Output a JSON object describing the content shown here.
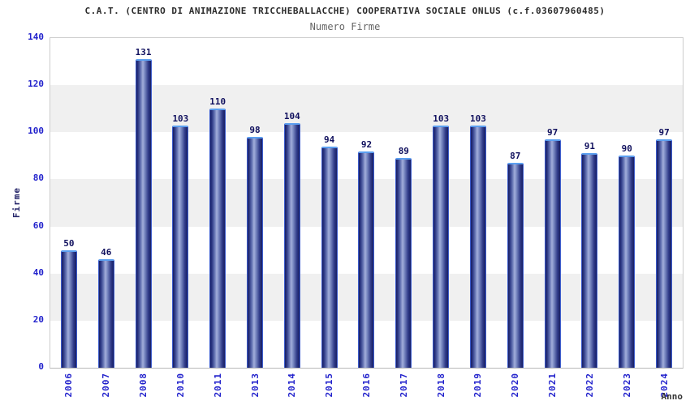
{
  "chart_data": {
    "type": "bar",
    "title": "C.A.T. (CENTRO DI ANIMAZIONE TRICCHEBALLACCHE) COOPERATIVA SOCIALE ONLUS (c.f.03607960485)",
    "subtitle": "Numero Firme",
    "categories": [
      "2006",
      "2007",
      "2008",
      "2010",
      "2011",
      "2013",
      "2014",
      "2015",
      "2016",
      "2017",
      "2018",
      "2019",
      "2020",
      "2021",
      "2022",
      "2023",
      "2024"
    ],
    "values": [
      50,
      46,
      131,
      103,
      110,
      98,
      104,
      94,
      92,
      89,
      103,
      103,
      87,
      97,
      91,
      90,
      97
    ],
    "xlabel": "Anno",
    "ylabel": "Firme",
    "ylim": [
      0,
      140
    ],
    "ytick_step": 20,
    "y_ticks": [
      0,
      20,
      40,
      60,
      80,
      100,
      120,
      140
    ],
    "legend": "none",
    "grid": "alternating-horizontal-bands"
  },
  "colors": {
    "tick_label": "#2222cc",
    "value_label": "#10105e",
    "title": "#2b2b2b",
    "subtitle": "#666666",
    "band_gray": "#f0f0f0",
    "plot_border": "#cccccc",
    "bar_dark": "#191f63",
    "bar_highlight": "#a3aedb",
    "bar_outline": "#3c5ccc",
    "bar_outline_top": "#5b9ff0",
    "y_axis_label": "#26266a",
    "x_axis_label": "#333333"
  }
}
